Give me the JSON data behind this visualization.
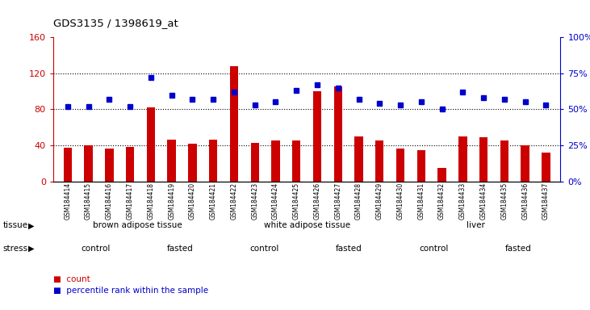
{
  "title": "GDS3135 / 1398619_at",
  "samples": [
    "GSM184414",
    "GSM184415",
    "GSM184416",
    "GSM184417",
    "GSM184418",
    "GSM184419",
    "GSM184420",
    "GSM184421",
    "GSM184422",
    "GSM184423",
    "GSM184424",
    "GSM184425",
    "GSM184426",
    "GSM184427",
    "GSM184428",
    "GSM184429",
    "GSM184430",
    "GSM184431",
    "GSM184432",
    "GSM184433",
    "GSM184434",
    "GSM184435",
    "GSM184436",
    "GSM184437"
  ],
  "counts": [
    37,
    40,
    36,
    38,
    82,
    46,
    42,
    46,
    128,
    43,
    45,
    45,
    100,
    105,
    50,
    45,
    36,
    35,
    15,
    50,
    49,
    45,
    40,
    32
  ],
  "percentile": [
    52,
    52,
    57,
    52,
    72,
    60,
    57,
    57,
    62,
    53,
    55,
    63,
    67,
    65,
    57,
    54,
    53,
    55,
    50,
    62,
    58,
    57,
    55,
    53
  ],
  "bar_color": "#cc0000",
  "dot_color": "#0000cc",
  "ylim_left": [
    0,
    160
  ],
  "ylim_right": [
    0,
    100
  ],
  "yticks_left": [
    0,
    40,
    80,
    120,
    160
  ],
  "yticks_right": [
    0,
    25,
    50,
    75,
    100
  ],
  "ytick_labels_right": [
    "0%",
    "25%",
    "50%",
    "75%",
    "100%"
  ],
  "tissue_groups": [
    {
      "label": "brown adipose tissue",
      "start": 0,
      "end": 8,
      "color": "#ccffcc"
    },
    {
      "label": "white adipose tissue",
      "start": 8,
      "end": 16,
      "color": "#88ee88"
    },
    {
      "label": "liver",
      "start": 16,
      "end": 24,
      "color": "#44cc44"
    }
  ],
  "stress_groups": [
    {
      "label": "control",
      "start": 0,
      "end": 4,
      "color": "#eeaaee"
    },
    {
      "label": "fasted",
      "start": 4,
      "end": 8,
      "color": "#cc44cc"
    },
    {
      "label": "control",
      "start": 8,
      "end": 12,
      "color": "#eeaaee"
    },
    {
      "label": "fasted",
      "start": 12,
      "end": 16,
      "color": "#cc44cc"
    },
    {
      "label": "control",
      "start": 16,
      "end": 20,
      "color": "#eeaaee"
    },
    {
      "label": "fasted",
      "start": 20,
      "end": 24,
      "color": "#cc44cc"
    }
  ],
  "legend_count_label": "count",
  "legend_pct_label": "percentile rank within the sample"
}
